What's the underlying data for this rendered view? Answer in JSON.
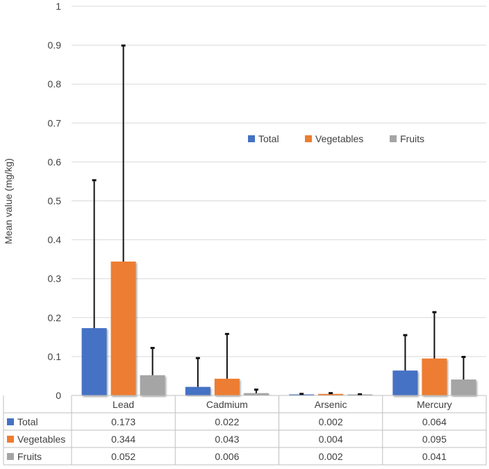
{
  "chart_data": {
    "type": "bar",
    "title": "",
    "xlabel": "",
    "ylabel": "Mean value (mg/kg)",
    "ylim": [
      0,
      1
    ],
    "yticks": [
      "0",
      "0.1",
      "0.2",
      "0.3",
      "0.4",
      "0.5",
      "0.6",
      "0.7",
      "0.8",
      "0.9",
      "1"
    ],
    "grid": true,
    "legend_position": "upper-right",
    "categories": [
      "Lead",
      "Cadmium",
      "Arsenic",
      "Mercury"
    ],
    "series": [
      {
        "name": "Total",
        "color": "#4472C4",
        "values": [
          0.173,
          0.022,
          0.002,
          0.064
        ],
        "error_upper": [
          0.553,
          0.096,
          0.004,
          0.155
        ],
        "labels": [
          "0.173",
          "0.022",
          "0.002",
          "0.064"
        ]
      },
      {
        "name": "Vegetables",
        "color": "#ED7D31",
        "values": [
          0.344,
          0.043,
          0.004,
          0.095
        ],
        "error_upper": [
          0.899,
          0.158,
          0.006,
          0.214
        ],
        "labels": [
          "0.344",
          "0.043",
          "0.004",
          "0.095"
        ]
      },
      {
        "name": "Fruits",
        "color": "#A5A5A5",
        "values": [
          0.052,
          0.006,
          0.002,
          0.041
        ],
        "error_upper": [
          0.122,
          0.015,
          0.003,
          0.099
        ],
        "labels": [
          "0.052",
          "0.006",
          "0.002",
          "0.041"
        ]
      }
    ]
  }
}
